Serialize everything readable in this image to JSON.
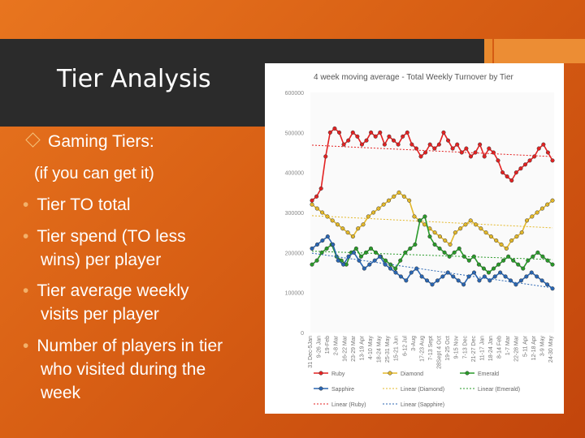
{
  "slide": {
    "title": "Tier Analysis",
    "bullets": [
      {
        "text": "Gaming Tiers:"
      },
      {
        "text": "(if you can get it)"
      },
      {
        "text": "Tier TO total"
      },
      {
        "text": "Tier spend (TO less"
      },
      {
        "text": "wins) per player"
      },
      {
        "text": "Tier average weekly"
      },
      {
        "text": "visits per player"
      },
      {
        "text": "Number of players in tier"
      },
      {
        "text": "who visited during the"
      },
      {
        "text": "week"
      }
    ],
    "colors": {
      "accent": "#e98a2e",
      "band": "#2b2b2b"
    }
  },
  "chart_data": {
    "type": "line",
    "title": "4 week moving average - Total Weekly Turnover by Tier",
    "ylim": [
      0,
      600000
    ],
    "y_ticks": [
      "600000",
      "500000",
      "400000",
      "300000",
      "200000",
      "100000",
      "0"
    ],
    "x_tick_labels": [
      "31 Dec-5Jan",
      "9-26 Jan",
      "19-Feb",
      "2-8 Mar",
      "16-22 Mar",
      "23-29 Mar",
      "13-19 Apr",
      "4-10 May",
      "18-24 May",
      "25-31 May",
      "15-21 Jun",
      "6-12 Jul",
      "3-Aug",
      "17-23 Aug",
      "7-13 Sept",
      "28Sept 4 Oct",
      "19-25 Oct",
      "9-15 Nov",
      "7-13 Dec",
      "21-27 Dec",
      "11-17 Jan",
      "18-24 Jan",
      "8-14 Feb",
      "1-7 Mar",
      "22-28 Mar",
      "5-11 Apr",
      "12-18 Apr",
      "3-9 May",
      "24-30 May"
    ],
    "series": [
      {
        "name": "Ruby",
        "color": "#e32222",
        "values": [
          330000,
          340000,
          360000,
          440000,
          500000,
          510000,
          500000,
          470000,
          480000,
          500000,
          490000,
          470000,
          480000,
          500000,
          490000,
          500000,
          470000,
          490000,
          480000,
          470000,
          490000,
          500000,
          470000,
          460000,
          440000,
          450000,
          470000,
          460000,
          470000,
          500000,
          480000,
          460000,
          470000,
          450000,
          460000,
          440000,
          450000,
          470000,
          440000,
          460000,
          450000,
          430000,
          400000,
          390000,
          380000,
          400000,
          410000,
          420000,
          430000,
          440000,
          460000,
          470000,
          450000,
          430000
        ]
      },
      {
        "name": "Diamond",
        "color": "#e3b82b",
        "values": [
          320000,
          310000,
          300000,
          290000,
          280000,
          270000,
          260000,
          250000,
          240000,
          260000,
          270000,
          290000,
          300000,
          310000,
          320000,
          330000,
          340000,
          350000,
          340000,
          330000,
          290000,
          280000,
          270000,
          260000,
          250000,
          240000,
          230000,
          220000,
          250000,
          260000,
          270000,
          280000,
          270000,
          260000,
          250000,
          240000,
          230000,
          220000,
          210000,
          230000,
          240000,
          250000,
          280000,
          290000,
          300000,
          310000,
          320000,
          330000
        ]
      },
      {
        "name": "Emerald",
        "color": "#2a9a2a",
        "values": [
          170000,
          180000,
          200000,
          210000,
          220000,
          190000,
          180000,
          170000,
          200000,
          210000,
          190000,
          200000,
          210000,
          200000,
          190000,
          180000,
          170000,
          160000,
          180000,
          200000,
          210000,
          220000,
          280000,
          290000,
          240000,
          220000,
          210000,
          200000,
          190000,
          200000,
          210000,
          190000,
          180000,
          190000,
          170000,
          160000,
          150000,
          160000,
          170000,
          180000,
          190000,
          180000,
          170000,
          160000,
          180000,
          190000,
          200000,
          190000,
          180000,
          170000
        ]
      },
      {
        "name": "Sapphire",
        "color": "#2a66b2",
        "values": [
          210000,
          220000,
          230000,
          240000,
          220000,
          180000,
          170000,
          190000,
          200000,
          180000,
          160000,
          170000,
          180000,
          190000,
          170000,
          160000,
          150000,
          140000,
          130000,
          150000,
          160000,
          140000,
          130000,
          120000,
          130000,
          140000,
          150000,
          140000,
          130000,
          120000,
          140000,
          150000,
          130000,
          140000,
          130000,
          140000,
          150000,
          140000,
          130000,
          120000,
          130000,
          140000,
          150000,
          140000,
          130000,
          120000,
          110000
        ]
      },
      {
        "name": "Linear (Diamond)",
        "color": "#e3b82b"
      },
      {
        "name": "Linear (Emerald)",
        "color": "#2a9a2a"
      },
      {
        "name": "Linear (Ruby)",
        "color": "#e32222"
      },
      {
        "name": "Linear (Sapphire)",
        "color": "#2a66b2"
      }
    ],
    "legend": "bottom"
  }
}
